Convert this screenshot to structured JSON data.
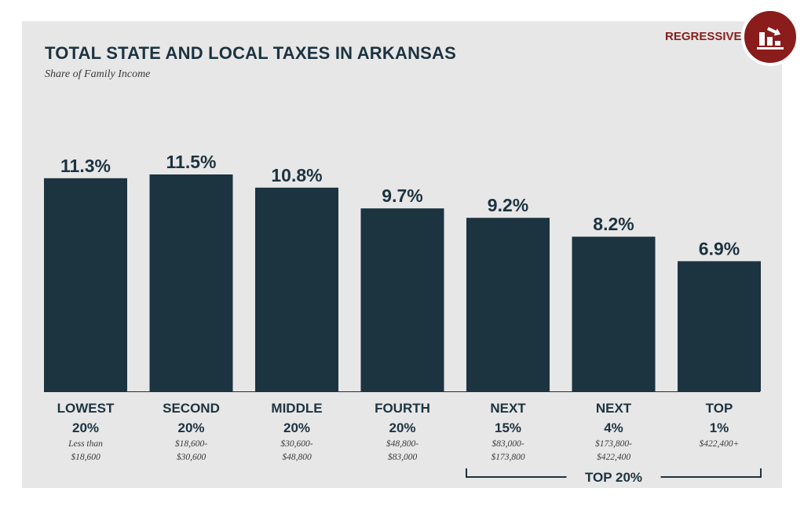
{
  "badge": {
    "label": "REGRESSIVE",
    "icon": "regressive-chart-icon",
    "color": "#8a1c1c"
  },
  "chart_data": {
    "type": "bar",
    "title": "TOTAL STATE AND LOCAL TAXES IN ARKANSAS",
    "subtitle": "Share of Family Income",
    "xlabel": "",
    "ylabel": "",
    "ylim": [
      0,
      12
    ],
    "grid": false,
    "bar_color": "#1c3340",
    "categories": [
      {
        "line1": "LOWEST",
        "line2": "20%",
        "range1": "Less than",
        "range2": "$18,600"
      },
      {
        "line1": "SECOND",
        "line2": "20%",
        "range1": "$18,600-",
        "range2": "$30,600"
      },
      {
        "line1": "MIDDLE",
        "line2": "20%",
        "range1": "$30,600-",
        "range2": "$48,800"
      },
      {
        "line1": "FOURTH",
        "line2": "20%",
        "range1": "$48,800-",
        "range2": "$83,000"
      },
      {
        "line1": "NEXT",
        "line2": "15%",
        "range1": "$83,000-",
        "range2": "$173,800"
      },
      {
        "line1": "NEXT",
        "line2": "4%",
        "range1": "$173,800-",
        "range2": "$422,400"
      },
      {
        "line1": "TOP",
        "line2": "1%",
        "range1": "$422,400+",
        "range2": ""
      }
    ],
    "values": [
      11.3,
      11.5,
      10.8,
      9.7,
      9.2,
      8.2,
      6.9
    ],
    "value_labels": [
      "11.3%",
      "11.5%",
      "10.8%",
      "9.7%",
      "9.2%",
      "8.2%",
      "6.9%"
    ],
    "bracket": {
      "label": "TOP 20%",
      "from_index": 4,
      "to_index": 6
    }
  }
}
